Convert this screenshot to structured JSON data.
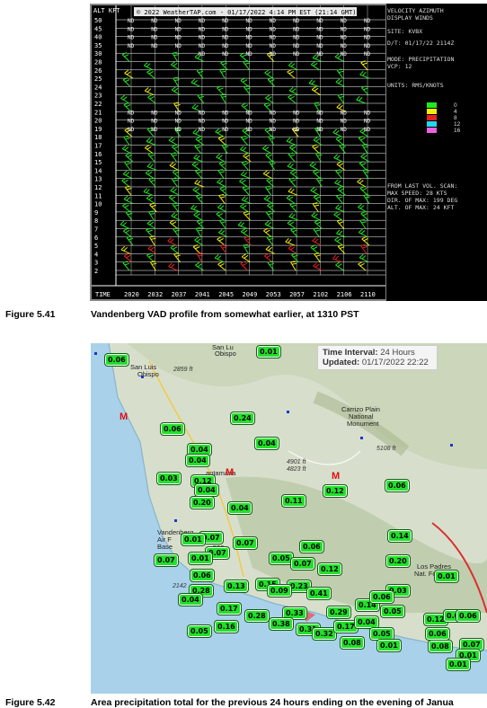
{
  "vad": {
    "header_label": "ALT KFT",
    "watermark": "© 2022 WeatherTAP.com - 01/17/2022  4:14 PM EST (21:14 GMT)",
    "title_lines": [
      "VELOCITY AZIMUTH",
      "DISPLAY WINDS"
    ],
    "site": "SITE: KVBX",
    "datetime": "D/T:  01/17/22 2114Z",
    "mode": "MODE: PRECIPITATION",
    "vcp": "VCP:  12",
    "units": "UNITS: RMS/KNOTS",
    "legend_values": [
      "0",
      "4",
      "8",
      "12",
      "16"
    ],
    "legend_colors": [
      "#22e822",
      "#f0f000",
      "#e82020",
      "#20d8f0",
      "#f060e0"
    ],
    "from_last": "FROM LAST VOL. SCAN:",
    "max_speed": "MAX SPEED:    28 KTS",
    "dir_of_max": "DIR. OF MAX:  199 DEG",
    "alt_of_max": "ALT. OF MAX:   24 KFT",
    "altitudes": [
      "50",
      "45",
      "40",
      "35",
      "30",
      "28",
      "26",
      "25",
      "24",
      "23",
      "22",
      "21",
      "20",
      "19",
      "18",
      "17",
      "16",
      "15",
      "14",
      "13",
      "12",
      "11",
      "10",
      "9",
      "8",
      "7",
      "6",
      "5",
      "4",
      "3",
      "2"
    ],
    "time_label": "TIME",
    "times": [
      "2020",
      "2032",
      "2037",
      "2041",
      "2045",
      "2049",
      "2053",
      "2057",
      "2102",
      "2106",
      "2110"
    ],
    "nd": "ND"
  },
  "captions": [
    {
      "label": "Figure 5.41",
      "text": "Vandenberg VAD profile from somewhat earlier, at 1310 PST"
    },
    {
      "label": "Figure 5.42",
      "text": "Area precipitation total for the previous 24 hours ending on the evening of Janua"
    }
  ],
  "map": {
    "info_interval_label": "Time Interval:",
    "info_interval_value": "24 Hours",
    "info_updated_label": "Updated:",
    "info_updated_value": "01/17/2022 22:22",
    "places": [
      "San Luis",
      "Obispo",
      "Carrizo Plain",
      "National",
      "Monument",
      "antamaria",
      "Vandenberg",
      "Air F",
      "Base",
      "poc",
      "Los Padres",
      "Nat. Forest",
      "San Lu",
      "Obispo"
    ],
    "elevations": [
      "2859 ft",
      "5108 ft",
      "4901 ft",
      "4823 ft",
      "2142"
    ],
    "badges": [
      "0.01",
      "0.06",
      "0.24",
      "0.04",
      "0.06",
      "0.04",
      "0.04",
      "0.03",
      "0.12",
      "0.04",
      "0.20",
      "0.04",
      "0.11",
      "0.12",
      "0.07",
      "0.06",
      "0.01",
      "0.07",
      "0.07",
      "0.07",
      "0.01",
      "0.06",
      "0.05",
      "0.07",
      "0.06",
      "0.12",
      "0.14",
      "0.20",
      "0.01",
      "0.03",
      "0.28",
      "0.04",
      "0.13",
      "0.15",
      "0.23",
      "0.09",
      "0.41",
      "0.17",
      "0.28",
      "0.33",
      "0.38",
      "0.31",
      "0.29",
      "0.14",
      "0.06",
      "0.05",
      "0.16",
      "0.05",
      "0.32",
      "0.17",
      "0.08",
      "0.04",
      "0.12",
      "0.08",
      "0.05",
      "0.01",
      "0.06",
      "0.07",
      "0.06",
      "0.01",
      "0.08",
      "0.01"
    ]
  }
}
